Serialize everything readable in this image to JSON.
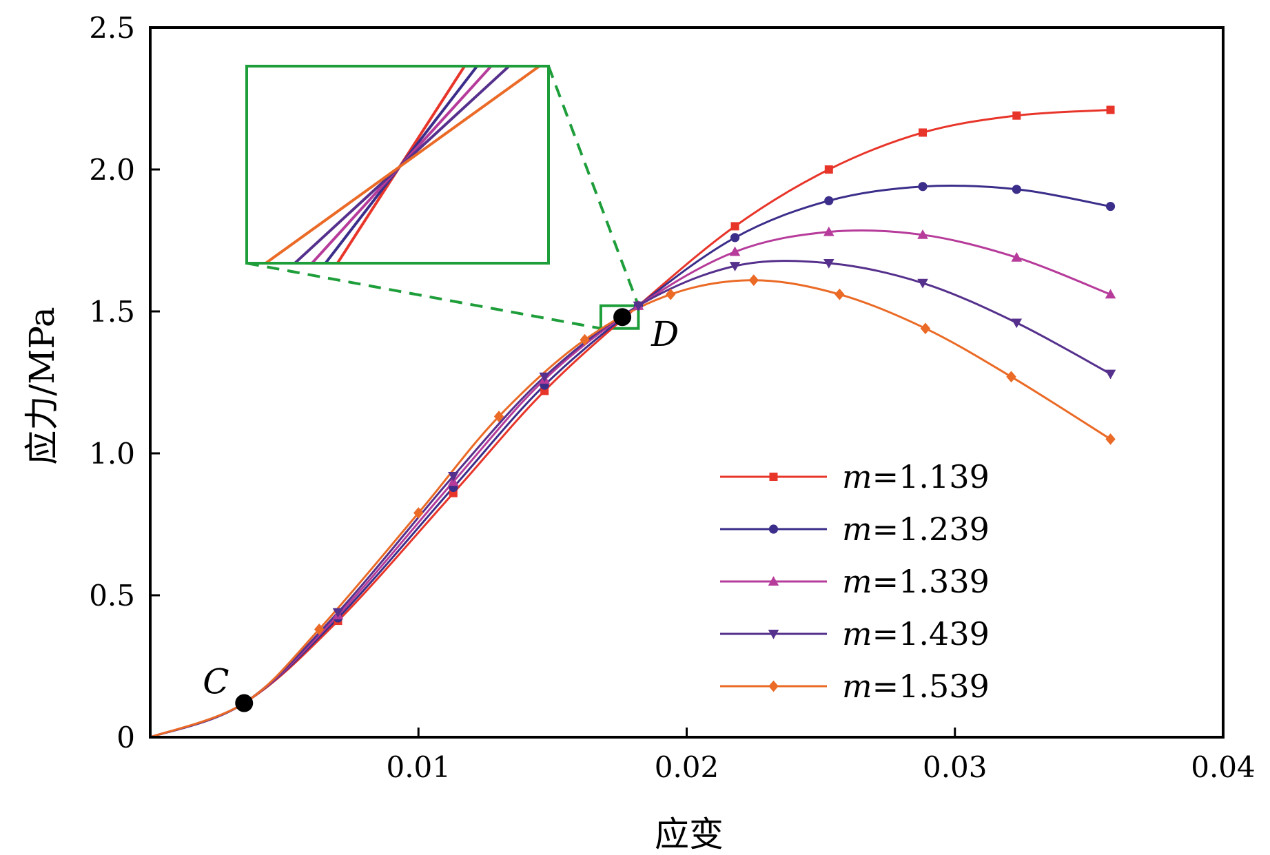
{
  "chart_data": {
    "type": "line",
    "xlabel": "应变",
    "ylabel": "应力/MPa",
    "xlim": [
      0,
      0.04
    ],
    "ylim": [
      0,
      2.5
    ],
    "x_ticks": [
      0.01,
      0.02,
      0.03,
      0.04
    ],
    "x_tick_labels": [
      "0.01",
      "0.02",
      "0.03",
      "0.04"
    ],
    "y_ticks": [
      0,
      0.5,
      1.0,
      1.5,
      2.0,
      2.5
    ],
    "y_tick_labels": [
      "0",
      "0.5",
      "1.0",
      "1.5",
      "2.0",
      "2.5"
    ],
    "grid": false,
    "legend_position": "bottom-right",
    "series": [
      {
        "name": "m=1.139",
        "legend_italic": "m",
        "legend_rest": "=1.139",
        "color": "#e8352a",
        "marker": "square",
        "x": [
          0.0,
          0.0035,
          0.007,
          0.0113,
          0.0147,
          0.0182,
          0.0218,
          0.0253,
          0.0288,
          0.0323,
          0.0358
        ],
        "y": [
          0.0,
          0.12,
          0.41,
          0.86,
          1.22,
          1.52,
          1.8,
          2.0,
          2.13,
          2.19,
          2.21
        ]
      },
      {
        "name": "m=1.239",
        "legend_italic": "m",
        "legend_rest": "=1.239",
        "color": "#3b2e8a",
        "marker": "circle",
        "x": [
          0.0,
          0.0035,
          0.007,
          0.0113,
          0.0147,
          0.0182,
          0.0218,
          0.0253,
          0.0288,
          0.0323,
          0.0358
        ],
        "y": [
          0.0,
          0.12,
          0.42,
          0.88,
          1.24,
          1.52,
          1.76,
          1.89,
          1.94,
          1.93,
          1.87
        ]
      },
      {
        "name": "m=1.339",
        "legend_italic": "m",
        "legend_rest": "=1.339",
        "color": "#b63b9a",
        "marker": "triangle-up",
        "x": [
          0.0,
          0.0035,
          0.007,
          0.0113,
          0.0147,
          0.0182,
          0.0218,
          0.0253,
          0.0288,
          0.0323,
          0.0358
        ],
        "y": [
          0.0,
          0.12,
          0.43,
          0.9,
          1.26,
          1.52,
          1.71,
          1.78,
          1.77,
          1.69,
          1.56
        ]
      },
      {
        "name": "m=1.439",
        "legend_italic": "m",
        "legend_rest": "=1.439",
        "color": "#55308c",
        "marker": "triangle-down",
        "x": [
          0.0,
          0.0035,
          0.007,
          0.0113,
          0.0147,
          0.0182,
          0.0218,
          0.0253,
          0.0288,
          0.0323,
          0.0358
        ],
        "y": [
          0.0,
          0.12,
          0.44,
          0.92,
          1.27,
          1.52,
          1.66,
          1.67,
          1.6,
          1.46,
          1.28
        ]
      },
      {
        "name": "m=1.539",
        "legend_italic": "m",
        "legend_rest": "=1.539",
        "color": "#ea6a26",
        "marker": "diamond",
        "x": [
          0.0,
          0.0035,
          0.0063,
          0.01,
          0.013,
          0.0162,
          0.0194,
          0.0225,
          0.0257,
          0.0289,
          0.0321,
          0.0358
        ],
        "y": [
          0.0,
          0.12,
          0.38,
          0.79,
          1.13,
          1.4,
          1.56,
          1.61,
          1.56,
          1.44,
          1.27,
          1.05
        ]
      }
    ],
    "annotations": [
      {
        "label": "C",
        "x": 0.0035,
        "y": 0.12,
        "color": "#000000"
      },
      {
        "label": "D",
        "x": 0.0176,
        "y": 1.48,
        "color": "#000000"
      }
    ],
    "zoom_region": {
      "x": [
        0.0168,
        0.0182
      ],
      "y": [
        1.44,
        1.52
      ],
      "color": "#1e9e3a"
    }
  }
}
